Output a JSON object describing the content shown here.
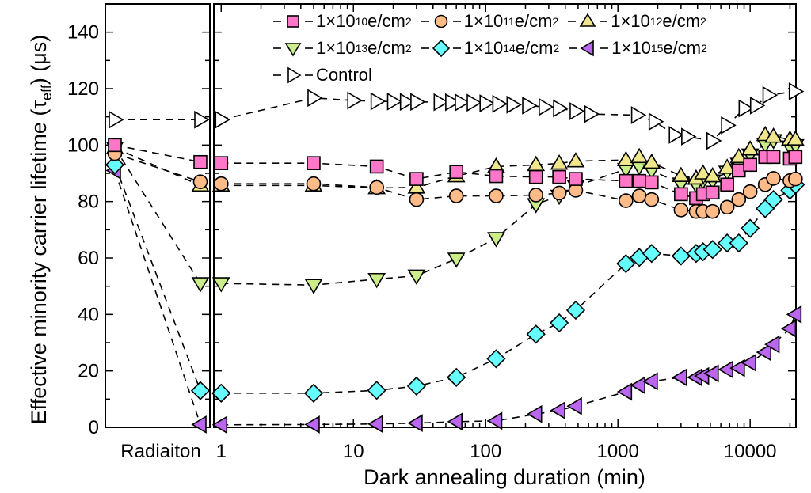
{
  "chart_data": {
    "type": "scatter",
    "xlabel": "Dark annealing duration (min)",
    "ylabel_main": "Effective minority carrier lifetime (τ",
    "ylabel_sub": "eff",
    "ylabel_end": ") (μs)",
    "x_scale": "log",
    "xlim": [
      0.88,
      22200
    ],
    "ylim": [
      0,
      150
    ],
    "y_ticks": [
      0,
      20,
      40,
      60,
      80,
      100,
      120,
      140
    ],
    "x_ticks": [
      "1",
      "10",
      "100",
      "1000",
      "10000"
    ],
    "left_panel_label": "Radiaiton",
    "grid": false,
    "legend_position": "top",
    "line_style": "dashed",
    "series": [
      {
        "name_base": "1×10",
        "name_exp": "10",
        "name_unit": " e/cm",
        "name_unit_exp": "2",
        "marker": "square",
        "color": "#ff77c8",
        "before": 100,
        "after_radiation": 94,
        "x": [
          1,
          5,
          15,
          30,
          60,
          120,
          240,
          360,
          480,
          1150,
          1450,
          1800,
          3000,
          3900,
          4400,
          5200,
          6700,
          8200,
          10000,
          13000,
          15000,
          20000,
          22000
        ],
        "y": [
          93.6,
          93.6,
          92.4,
          88,
          90.5,
          89,
          88.7,
          88.7,
          88,
          87.3,
          87.3,
          86.8,
          82.6,
          81.2,
          82.6,
          83.2,
          86,
          91,
          93,
          95.8,
          95.8,
          95.2,
          95.8
        ]
      },
      {
        "name_base": "1×10",
        "name_exp": "11",
        "name_unit": " e/cm",
        "name_unit_exp": "2",
        "marker": "circle",
        "color": "#ffbb88",
        "before": 97,
        "after_radiation": 87,
        "x": [
          1,
          5,
          15,
          30,
          60,
          120,
          240,
          360,
          480,
          1150,
          1450,
          1800,
          3000,
          3900,
          4400,
          5200,
          6700,
          8200,
          10000,
          13000,
          15000,
          20000,
          22000
        ],
        "y": [
          86.3,
          86.3,
          85,
          80.7,
          82,
          82,
          82.3,
          83,
          84,
          80.3,
          82,
          80.7,
          77,
          76.5,
          76.5,
          76.5,
          78,
          80.7,
          83.5,
          86,
          88.2,
          87.4,
          88
        ]
      },
      {
        "name_base": "1×10",
        "name_exp": "12",
        "name_unit": " e/cm",
        "name_unit_exp": "2",
        "marker": "triangle-up",
        "color": "#f0e68c",
        "before": 99,
        "after_radiation": 85.7,
        "x": [
          1,
          5,
          15,
          30,
          60,
          120,
          240,
          360,
          480,
          1150,
          1450,
          1800,
          3000,
          3900,
          4400,
          5200,
          6700,
          8200,
          10000,
          13000,
          15000,
          20000,
          22000
        ],
        "y": [
          85.7,
          85.7,
          84.8,
          85,
          89,
          92.4,
          93,
          93.5,
          94.3,
          94.7,
          95.8,
          93.8,
          89.1,
          88.2,
          90,
          89,
          92,
          95.8,
          98.5,
          103.6,
          103,
          102,
          102
        ]
      },
      {
        "name_base": "1×10",
        "name_exp": "13",
        "name_unit": " e/cm",
        "name_unit_exp": "2",
        "marker": "triangle-down",
        "color": "#ccee88",
        "before": 99,
        "after_radiation": 51,
        "x": [
          1,
          5,
          15,
          30,
          60,
          120,
          240,
          360,
          480,
          1150,
          1450,
          1800,
          3000,
          3900,
          4400,
          5200,
          6700,
          8200,
          10000,
          13000,
          15000,
          20000,
          22000
        ],
        "y": [
          51,
          50.4,
          52.5,
          53.7,
          59.7,
          67,
          79,
          82,
          85.4,
          91.5,
          92.4,
          91,
          86.3,
          86,
          87.4,
          87.4,
          90.5,
          93.3,
          96.6,
          100.3,
          101.7,
          99.4,
          99.9
        ]
      },
      {
        "name_base": "1×10",
        "name_exp": "14",
        "name_unit": " e/cm",
        "name_unit_exp": "2",
        "marker": "diamond",
        "color": "#66ffff",
        "before": 93,
        "after_radiation": 13,
        "x": [
          1,
          5,
          15,
          30,
          60,
          120,
          240,
          360,
          480,
          1150,
          1450,
          1800,
          3000,
          3900,
          4400,
          5200,
          6700,
          8200,
          10000,
          13000,
          15000,
          20000,
          22000
        ],
        "y": [
          12.1,
          12.1,
          13.1,
          14.6,
          17.7,
          24.3,
          33,
          37,
          41.5,
          58,
          60.2,
          61.6,
          60.7,
          61.6,
          62.2,
          63,
          65.3,
          65.3,
          70.5,
          77.5,
          80.7,
          84,
          86
        ]
      },
      {
        "name_base": "1×10",
        "name_exp": "15",
        "name_unit": " e/cm",
        "name_unit_exp": "2",
        "marker": "triangle-left",
        "color": "#bb66ee",
        "before": 91,
        "after_radiation": 1,
        "x": [
          1,
          5,
          15,
          30,
          60,
          120,
          240,
          360,
          480,
          1150,
          1450,
          1800,
          3000,
          3900,
          4400,
          5200,
          6700,
          8200,
          10000,
          13000,
          15000,
          20000,
          22000
        ],
        "y": [
          0.9,
          1,
          1.2,
          1.5,
          2,
          2.3,
          4.7,
          6,
          7.5,
          12.6,
          14.9,
          16.3,
          17.7,
          17.7,
          18.2,
          19.1,
          20.5,
          21,
          22.9,
          26.6,
          29.4,
          35,
          40
        ]
      },
      {
        "name_base": "Control",
        "marker": "triangle-right",
        "color": "#ffffff",
        "before": 109,
        "after_radiation": 109,
        "x": [
          1,
          5,
          10,
          15,
          20,
          25,
          30,
          45,
          55,
          65,
          80,
          100,
          125,
          160,
          210,
          280,
          360,
          480,
          620,
          1400,
          1900,
          2700,
          3350,
          5200,
          6700,
          9100,
          11100,
          13800,
          21800
        ],
        "y": [
          109,
          116.7,
          115.8,
          115.5,
          115.4,
          115.3,
          115.3,
          115.2,
          115.2,
          115.1,
          115,
          114.8,
          114.6,
          114.3,
          114,
          113.5,
          113,
          112,
          111,
          110.6,
          108.3,
          103.6,
          103,
          101.5,
          107,
          113,
          114,
          117.7,
          119
        ]
      }
    ]
  }
}
